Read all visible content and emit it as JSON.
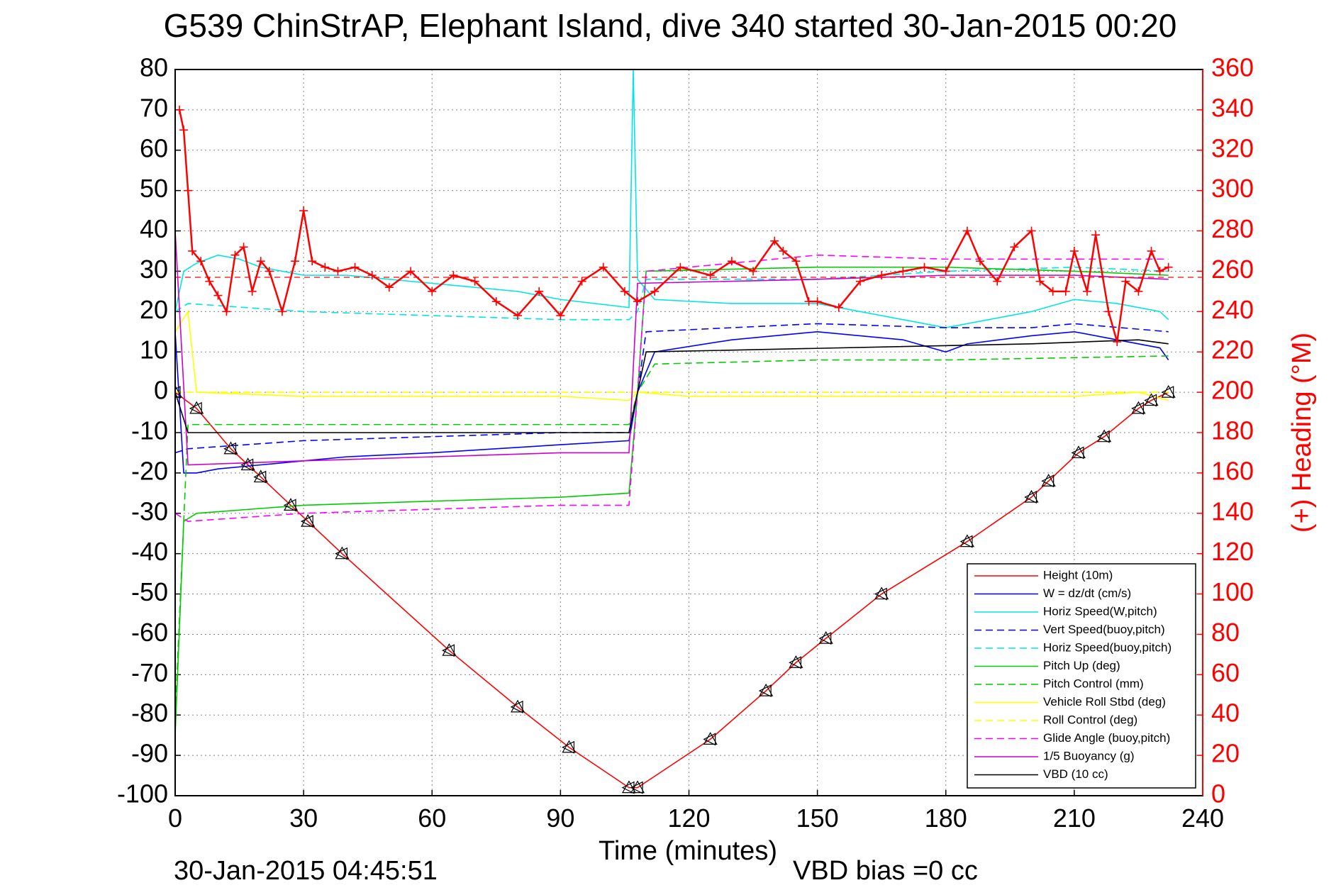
{
  "title": "G539 ChinStrAP, Elephant Island, dive 340 started 30-Jan-2015 00:20",
  "footer_date": "30-Jan-2015 04:45:51",
  "footer_vbd": "VBD bias =0 cc",
  "chart_data": {
    "type": "line",
    "title": "G539 ChinStrAP, Elephant Island, dive 340 started 30-Jan-2015 00:20",
    "xlabel": "Time (minutes)",
    "ylabel": "",
    "y2label": "(+) Heading (°M)",
    "xlim": [
      0,
      240
    ],
    "ylim": [
      -100,
      80
    ],
    "y2lim": [
      0,
      360
    ],
    "xticks": [
      "0",
      "30",
      "60",
      "90",
      "120",
      "150",
      "180",
      "210",
      "240"
    ],
    "yticks": [
      "80",
      "70",
      "60",
      "50",
      "40",
      "30",
      "20",
      "10",
      "0",
      "-10",
      "-20",
      "-30",
      "-40",
      "-50",
      "-60",
      "-70",
      "-80",
      "-90",
      "-100"
    ],
    "y2ticks": [
      "360",
      "340",
      "320",
      "300",
      "280",
      "260",
      "240",
      "220",
      "200",
      "180",
      "160",
      "140",
      "120",
      "100",
      "80",
      "60",
      "40",
      "20",
      "0"
    ],
    "grid": true,
    "legend_position": "lower-right",
    "colors": {
      "heading": "#ff0000",
      "axis_right": "#ff0000"
    },
    "series": [
      {
        "name": "Height (10m)",
        "color": "#ff0000",
        "dash": "solid",
        "x": [
          0,
          5,
          13,
          17,
          20,
          27,
          31,
          39,
          64,
          80,
          92,
          106,
          108,
          125,
          138,
          145,
          152,
          165,
          185,
          200,
          204,
          211,
          217,
          225,
          228,
          232
        ],
        "y": [
          0,
          -4,
          -14,
          -18,
          -21,
          -28,
          -32,
          -40,
          -64,
          -78,
          -88,
          -98,
          -98,
          -86,
          -74,
          -67,
          -61,
          -50,
          -37,
          -26,
          -22,
          -15,
          -11,
          -4,
          -2,
          0
        ]
      },
      {
        "name": "W = dz/dt (cm/s)",
        "color": "#0000ff",
        "dash": "solid",
        "x": [
          0,
          2,
          5,
          10,
          20,
          30,
          40,
          60,
          90,
          106,
          108,
          112,
          130,
          150,
          170,
          180,
          185,
          200,
          210,
          220,
          230,
          232
        ],
        "y": [
          15,
          -20,
          -20,
          -19,
          -18,
          -17,
          -16,
          -15,
          -13,
          -12,
          0,
          10,
          13,
          15,
          13,
          10,
          12,
          14,
          15,
          13,
          11,
          8
        ]
      },
      {
        "name": "Horiz Speed(W,pitch)",
        "color": "#00e5e5",
        "dash": "solid",
        "x": [
          0,
          2,
          5,
          10,
          15,
          20,
          30,
          40,
          60,
          80,
          90,
          106,
          107,
          108,
          112,
          130,
          150,
          170,
          180,
          190,
          200,
          210,
          220,
          230,
          232
        ],
        "y": [
          20,
          30,
          32,
          34,
          33,
          31,
          29,
          29,
          27,
          25,
          23,
          21,
          80,
          28,
          23,
          22,
          22,
          18,
          16,
          18,
          20,
          23,
          22,
          20,
          18
        ]
      },
      {
        "name": "Vert Speed(buoy,pitch)",
        "color": "#0000ff",
        "dash": "dashed",
        "x": [
          0,
          3,
          30,
          60,
          90,
          106,
          108,
          110,
          150,
          180,
          200,
          210,
          232
        ],
        "y": [
          -15,
          -14,
          -12,
          -11,
          -10,
          -10,
          0,
          15,
          17,
          16,
          16,
          17,
          15
        ]
      },
      {
        "name": "Horiz Speed(buoy,pitch)",
        "color": "#00e5e5",
        "dash": "dashed",
        "x": [
          0,
          3,
          30,
          60,
          90,
          106,
          108,
          110,
          150,
          180,
          210,
          232
        ],
        "y": [
          20,
          22,
          20,
          19,
          18,
          18,
          20,
          28,
          28,
          30,
          31,
          30
        ]
      },
      {
        "name": "Pitch Up (deg)",
        "color": "#00cc00",
        "dash": "solid",
        "x": [
          0,
          2,
          5,
          30,
          60,
          90,
          106,
          108,
          110,
          150,
          180,
          210,
          232
        ],
        "y": [
          -85,
          -32,
          -30,
          -28,
          -27,
          -26,
          -25,
          0,
          30,
          31,
          31,
          30,
          29
        ]
      },
      {
        "name": "Pitch Control (mm)",
        "color": "#00cc00",
        "dash": "dashed",
        "x": [
          0,
          3,
          30,
          60,
          106,
          108,
          112,
          150,
          180,
          232
        ],
        "y": [
          -80,
          -8,
          -8,
          -8,
          -8,
          0,
          7,
          8,
          8,
          9
        ]
      },
      {
        "name": "Vehicle Roll Stbd (deg)",
        "color": "#ffff00",
        "dash": "solid",
        "x": [
          0,
          3,
          5,
          30,
          60,
          90,
          106,
          108,
          120,
          150,
          180,
          210,
          225,
          232
        ],
        "y": [
          15,
          20,
          0,
          -1,
          -1,
          -1,
          -2,
          0,
          -1,
          -1,
          -1,
          -1,
          0,
          -2
        ]
      },
      {
        "name": "Roll Control (deg)",
        "color": "#ffff00",
        "dash": "dashed",
        "x": [
          0,
          232
        ],
        "y": [
          0,
          0
        ]
      },
      {
        "name": "Glide Angle (buoy,pitch)",
        "color": "#ff00ff",
        "dash": "dashed",
        "x": [
          0,
          3,
          30,
          60,
          90,
          106,
          108,
          110,
          150,
          180,
          232
        ],
        "y": [
          -30,
          -32,
          -30,
          -29,
          -28,
          -28,
          0,
          30,
          34,
          33,
          33
        ]
      },
      {
        "name": "1/5 Buoyancy (g)",
        "color": "#cc00cc",
        "dash": "solid",
        "x": [
          0,
          3,
          30,
          60,
          90,
          106,
          108,
          150,
          180,
          210,
          232
        ],
        "y": [
          40,
          -18,
          -17,
          -16,
          -15,
          -15,
          27,
          28,
          29,
          29,
          28
        ]
      },
      {
        "name": "VBD (10 cc)",
        "color": "#000000",
        "dash": "solid",
        "x": [
          0,
          3,
          106,
          110,
          200,
          225,
          232
        ],
        "y": [
          0,
          -10,
          -10,
          10,
          12,
          13,
          12
        ]
      }
    ],
    "heading": {
      "name": "(+) Heading (°M)",
      "axis": "right",
      "color": "#ff0000",
      "marker": "+",
      "mean": 257,
      "x": [
        1,
        2,
        3,
        4,
        6,
        8,
        10,
        12,
        14,
        16,
        18,
        20,
        22,
        25,
        28,
        30,
        32,
        35,
        38,
        42,
        46,
        50,
        55,
        60,
        65,
        70,
        75,
        80,
        85,
        90,
        95,
        100,
        105,
        108,
        112,
        118,
        125,
        130,
        135,
        140,
        142,
        145,
        148,
        150,
        155,
        160,
        165,
        170,
        175,
        180,
        185,
        188,
        192,
        196,
        200,
        202,
        205,
        208,
        210,
        213,
        215,
        218,
        220,
        222,
        225,
        228,
        230,
        232
      ],
      "y": [
        340,
        330,
        300,
        270,
        265,
        255,
        248,
        240,
        268,
        272,
        250,
        265,
        260,
        240,
        265,
        290,
        265,
        262,
        260,
        262,
        258,
        252,
        260,
        250,
        258,
        255,
        245,
        238,
        250,
        238,
        255,
        262,
        250,
        245,
        250,
        262,
        258,
        265,
        260,
        275,
        270,
        265,
        245,
        245,
        242,
        255,
        258,
        260,
        262,
        260,
        280,
        265,
        255,
        272,
        280,
        255,
        250,
        250,
        270,
        250,
        278,
        240,
        225,
        255,
        250,
        270,
        260,
        262
      ]
    }
  }
}
